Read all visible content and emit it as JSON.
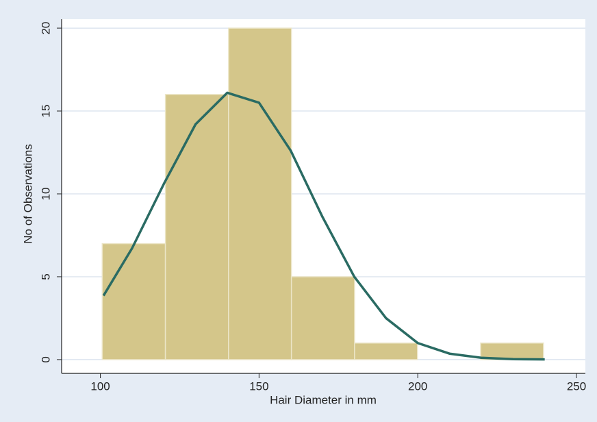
{
  "chart_data": {
    "type": "histogram",
    "xlabel": "Hair Diameter in mm",
    "ylabel": "No of Observations",
    "bins": [
      100.6,
      120.5,
      140.4,
      160.2,
      180.1,
      199.9,
      219.8,
      239.6
    ],
    "values": [
      7,
      16,
      20,
      5,
      1,
      0,
      1
    ],
    "color": "#d4c68a",
    "curve": {
      "type": "line",
      "color": "#2a6b63",
      "x": [
        101,
        110,
        120,
        130,
        140,
        150,
        160,
        170,
        180,
        190,
        200,
        210,
        220,
        230,
        240
      ],
      "values": [
        3.86,
        6.72,
        10.6,
        14.2,
        16.1,
        15.5,
        12.6,
        8.6,
        5.0,
        2.5,
        1.0,
        0.36,
        0.11,
        0.03,
        0.01
      ]
    },
    "xlim": [
      87.8,
      252.8
    ],
    "ylim": [
      -0.83,
      20.54
    ],
    "xticks": [
      100,
      150,
      200,
      250
    ],
    "yticks": [
      0,
      5,
      10,
      15,
      20
    ],
    "grid": true
  }
}
